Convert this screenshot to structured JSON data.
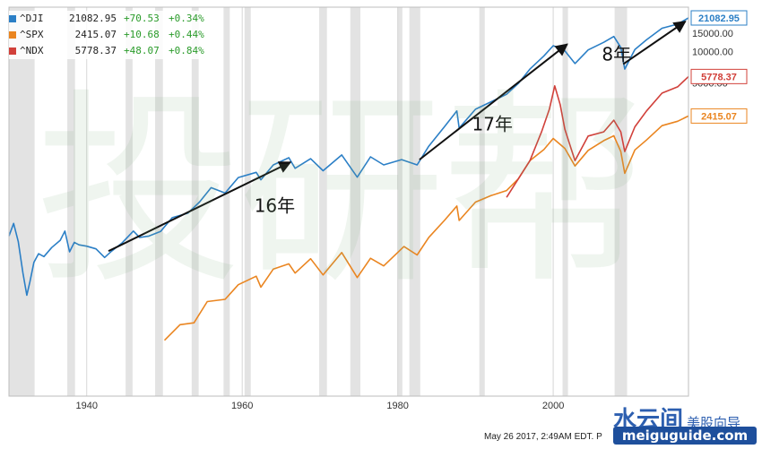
{
  "chart_data": {
    "type": "line",
    "xlim": [
      1930,
      2017.4
    ],
    "x_ticks": [
      "1940",
      "1960",
      "1980",
      "2000"
    ],
    "y_scale": "log",
    "y_ticks_right": [
      "15000.00",
      "10000.00",
      "5000.00"
    ],
    "grid": "vertical shaded bands",
    "legend": "top-left",
    "series": [
      {
        "name": "^DJI",
        "color": "#2b7fc6",
        "last_label": "21082.95",
        "x": [
          1930.0,
          1930.6,
          1931.2,
          1931.8,
          1932.3,
          1932.7,
          1933.2,
          1933.8,
          1934.5,
          1935.5,
          1936.6,
          1937.2,
          1937.8,
          1938.4,
          1939.0,
          1940.0,
          1941.2,
          1942.3,
          1943.2,
          1944.5,
          1946.0,
          1946.8,
          1948.0,
          1949.5,
          1951.0,
          1953.0,
          1954.5,
          1956.0,
          1957.8,
          1959.5,
          1961.8,
          1962.4,
          1964.0,
          1966.0,
          1966.8,
          1968.8,
          1970.4,
          1972.8,
          1974.8,
          1976.5,
          1978.2,
          1980.5,
          1982.5,
          1984.0,
          1986.0,
          1987.6,
          1987.9,
          1990.0,
          1992.0,
          1994.0,
          1995.5,
          1997.0,
          1998.8,
          2000.0,
          2001.5,
          2002.8,
          2004.5,
          2006.5,
          2007.8,
          2008.7,
          2009.2,
          2010.5,
          2012.0,
          2014.0,
          2016.0,
          2017.4
        ],
        "y": [
          170,
          225,
          150,
          75,
          46,
          62,
          95,
          115,
          108,
          132,
          155,
          190,
          120,
          148,
          140,
          136,
          128,
          106,
          122,
          145,
          190,
          165,
          170,
          188,
          255,
          282,
          360,
          495,
          440,
          620,
          695,
          590,
          820,
          960,
          760,
          940,
          720,
          1020,
          625,
          980,
          820,
          920,
          820,
          1240,
          1900,
          2700,
          1850,
          2800,
          3300,
          3900,
          4950,
          6800,
          9100,
          11400,
          10200,
          7700,
          10400,
          12300,
          14000,
          11000,
          6800,
          10500,
          13000,
          16800,
          18400,
          21082.95
        ]
      },
      {
        "name": "^SPX",
        "color": "#ea8520",
        "last_label": "2415.07",
        "x": [
          1950.0,
          1952.0,
          1953.8,
          1955.5,
          1957.8,
          1959.5,
          1961.8,
          1962.4,
          1964.0,
          1966.0,
          1966.8,
          1968.8,
          1970.4,
          1972.8,
          1974.8,
          1976.5,
          1978.2,
          1980.8,
          1982.5,
          1984.0,
          1986.0,
          1987.6,
          1987.9,
          1990.0,
          1992.0,
          1994.0,
          1995.5,
          1997.0,
          1998.8,
          2000.0,
          2001.5,
          2002.8,
          2004.5,
          2006.5,
          2007.8,
          2008.7,
          2009.2,
          2010.5,
          2012.0,
          2014.0,
          2016.0,
          2017.4
        ],
        "y": [
          17,
          24,
          25,
          40,
          42,
          58,
          70,
          55,
          82,
          92,
          75,
          103,
          72,
          118,
          68,
          104,
          88,
          135,
          112,
          165,
          240,
          330,
          240,
          360,
          415,
          465,
          600,
          900,
          1150,
          1470,
          1180,
          800,
          1130,
          1400,
          1560,
          1100,
          680,
          1140,
          1420,
          1950,
          2150,
          2415.07
        ]
      },
      {
        "name": "^NDX",
        "color": "#d1403a",
        "last_label": "5778.37",
        "x": [
          1994.0,
          1995.5,
          1997.0,
          1998.5,
          1999.5,
          2000.2,
          2000.9,
          2001.5,
          2002.8,
          2004.5,
          2006.5,
          2007.8,
          2008.7,
          2009.2,
          2010.5,
          2012.0,
          2014.0,
          2016.0,
          2017.4
        ],
        "y": [
          400,
          600,
          900,
          1700,
          2800,
          4700,
          3100,
          1800,
          900,
          1550,
          1700,
          2200,
          1700,
          1100,
          1900,
          2700,
          4000,
          4600,
          5778.37
        ]
      }
    ],
    "annotations": [
      "16年",
      "17年",
      "8年"
    ],
    "timestamp": "May 26 2017, 2:49AM EDT. P"
  },
  "legend": {
    "rows": [
      {
        "symbol": "^DJI",
        "value": "21082.95",
        "change": "+70.53",
        "pct": "+0.34%",
        "color": "#2b7fc6"
      },
      {
        "symbol": "^SPX",
        "value": "2415.07",
        "change": "+10.68",
        "pct": "+0.44%",
        "color": "#ea8520"
      },
      {
        "symbol": "^NDX",
        "value": "5778.37",
        "change": "+48.07",
        "pct": "+0.84%",
        "color": "#d1403a"
      }
    ]
  },
  "watermark": {
    "text": "投研帮"
  },
  "brand": {
    "main": "水云间",
    "sub": "美股向导",
    "url": "meiguguide.com"
  }
}
